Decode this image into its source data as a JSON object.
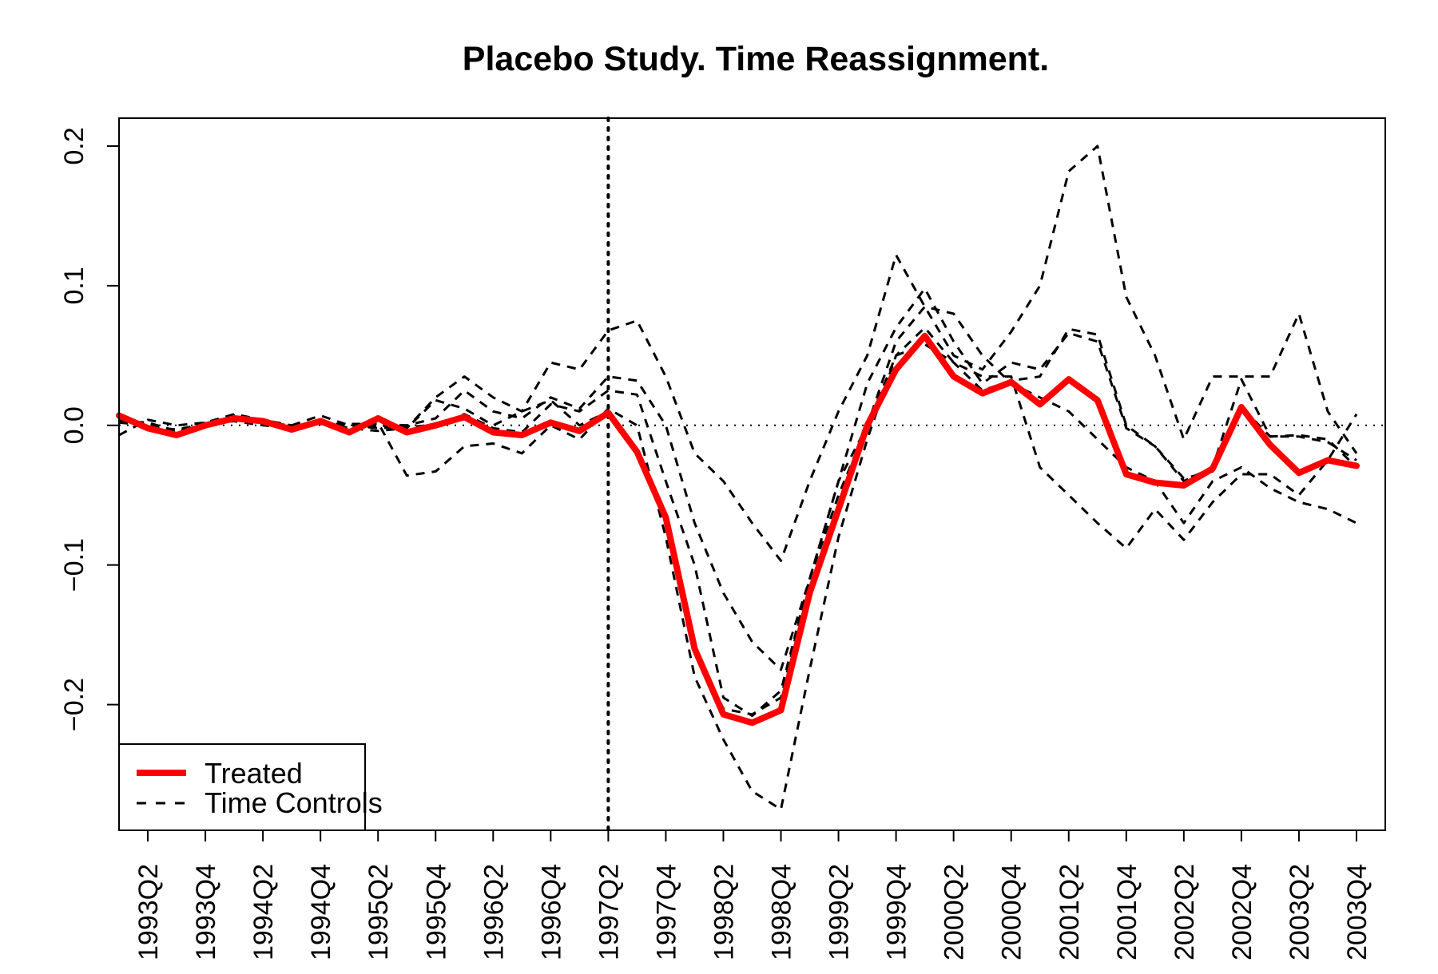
{
  "chart_data": {
    "type": "line",
    "title": "Placebo Study. Time Reassignment.",
    "xlabel": "",
    "ylabel": "",
    "x_tick_labels": [
      "1993Q2",
      "1993Q4",
      "1994Q2",
      "1994Q4",
      "1995Q2",
      "1995Q4",
      "1996Q2",
      "1996Q4",
      "1997Q2",
      "1997Q4",
      "1998Q2",
      "1998Q4",
      "1999Q2",
      "1999Q4",
      "2000Q2",
      "2000Q4",
      "2001Q2",
      "2001Q4",
      "2002Q2",
      "2002Q4",
      "2003Q2",
      "2003Q4"
    ],
    "y_ticks": [
      -0.2,
      -0.1,
      0.0,
      0.1,
      0.2
    ],
    "y_tick_labels": [
      "−0.2",
      "−0.1",
      "0.0",
      "0.1",
      "0.2"
    ],
    "ylim": [
      -0.29,
      0.22
    ],
    "xlim": [
      "1993Q1",
      "2004Q1"
    ],
    "reference_lines": {
      "vertical_at": "1997Q2",
      "horizontal_at": 0.0
    },
    "legend": {
      "placement": "bottom-left",
      "entries": [
        "Treated",
        "Time Controls"
      ]
    },
    "x": [
      "1993Q1",
      "1993Q2",
      "1993Q3",
      "1993Q4",
      "1994Q1",
      "1994Q2",
      "1994Q3",
      "1994Q4",
      "1995Q1",
      "1995Q2",
      "1995Q3",
      "1995Q4",
      "1996Q1",
      "1996Q2",
      "1996Q3",
      "1996Q4",
      "1997Q1",
      "1997Q2",
      "1997Q3",
      "1997Q4",
      "1998Q1",
      "1998Q2",
      "1998Q3",
      "1998Q4",
      "1999Q1",
      "1999Q2",
      "1999Q3",
      "1999Q4",
      "2000Q1",
      "2000Q2",
      "2000Q3",
      "2000Q4",
      "2001Q1",
      "2001Q2",
      "2001Q3",
      "2001Q4",
      "2002Q1",
      "2002Q2",
      "2002Q3",
      "2002Q4",
      "2003Q1",
      "2003Q2",
      "2003Q3",
      "2003Q4"
    ],
    "series": [
      {
        "name": "Treated",
        "color": "#ff0000",
        "style": "solid",
        "values": [
          0.007,
          -0.002,
          -0.007,
          0.0,
          0.005,
          0.003,
          -0.003,
          0.003,
          -0.005,
          0.005,
          -0.005,
          0.0,
          0.006,
          -0.005,
          -0.007,
          0.002,
          -0.004,
          0.009,
          -0.019,
          -0.066,
          -0.16,
          -0.207,
          -0.213,
          -0.204,
          -0.12,
          -0.06,
          0.0,
          0.04,
          0.064,
          0.035,
          0.023,
          0.031,
          0.015,
          0.033,
          0.018,
          -0.035,
          -0.041,
          -0.043,
          -0.031,
          0.013,
          -0.014,
          -0.034,
          -0.025,
          -0.029
        ]
      },
      {
        "style": "dashed",
        "color": "#000000",
        "values": [
          0.003,
          0.002,
          -0.004,
          0.001,
          0.003,
          0.0,
          -0.002,
          0.003,
          -0.002,
          -0.004,
          -0.002,
          0.02,
          0.035,
          0.02,
          0.01,
          0.045,
          0.04,
          0.068,
          0.075,
          0.035,
          -0.02,
          -0.04,
          -0.07,
          -0.097,
          -0.04,
          0.01,
          0.05,
          0.122,
          0.085,
          0.05,
          0.04,
          0.067,
          0.1,
          0.182,
          0.2,
          0.092,
          0.05,
          -0.01,
          0.035,
          0.035,
          0.035,
          0.08,
          0.01,
          -0.02
        ]
      },
      {
        "style": "dashed",
        "color": "#000000",
        "values": [
          -0.007,
          0.004,
          0.0,
          0.002,
          0.008,
          0.004,
          0.0,
          0.001,
          0.001,
          0.001,
          0.0,
          0.005,
          0.025,
          0.01,
          0.005,
          0.02,
          0.012,
          0.035,
          0.032,
          0.0,
          -0.07,
          -0.12,
          -0.155,
          -0.175,
          -0.11,
          -0.04,
          0.03,
          0.07,
          0.098,
          0.06,
          0.03,
          0.045,
          0.04,
          0.066,
          0.06,
          -0.002,
          -0.015,
          -0.04,
          -0.03,
          0.033,
          -0.008,
          -0.007,
          -0.01,
          -0.03
        ]
      },
      {
        "style": "dashed",
        "color": "#000000",
        "values": [
          0.004,
          -0.001,
          -0.003,
          0.001,
          0.006,
          0.002,
          0.0,
          0.007,
          0.0,
          -0.002,
          -0.001,
          0.0,
          0.008,
          -0.002,
          -0.005,
          0.015,
          0.01,
          0.025,
          0.022,
          -0.04,
          -0.1,
          -0.195,
          -0.208,
          -0.19,
          -0.11,
          -0.04,
          0.0,
          0.06,
          0.085,
          0.08,
          0.05,
          0.03,
          0.02,
          0.01,
          -0.01,
          -0.03,
          -0.04,
          -0.07,
          -0.04,
          -0.03,
          -0.045,
          -0.055,
          -0.06,
          -0.07
        ]
      },
      {
        "style": "dashed",
        "color": "#000000",
        "values": [
          0.002,
          0.0,
          -0.005,
          0.002,
          0.005,
          0.004,
          -0.002,
          0.003,
          -0.003,
          0.002,
          -0.036,
          -0.033,
          -0.015,
          -0.013,
          -0.02,
          0.0,
          -0.01,
          0.012,
          0.0,
          -0.08,
          -0.18,
          -0.225,
          -0.262,
          -0.275,
          -0.175,
          -0.08,
          -0.01,
          0.05,
          0.07,
          0.045,
          0.035,
          0.035,
          -0.03,
          -0.05,
          -0.07,
          -0.088,
          -0.06,
          -0.082,
          -0.055,
          -0.035,
          -0.035,
          -0.05,
          -0.025,
          0.008
        ]
      },
      {
        "style": "dashed",
        "color": "#000000",
        "values": [
          0.004,
          0.001,
          -0.006,
          0.002,
          0.007,
          0.004,
          -0.001,
          0.002,
          -0.003,
          0.0,
          -0.002,
          0.018,
          0.012,
          0.0,
          0.01,
          0.018,
          0.0,
          0.01,
          -0.02,
          -0.065,
          -0.16,
          -0.203,
          -0.207,
          -0.195,
          -0.11,
          -0.05,
          0.0,
          0.05,
          0.058,
          0.045,
          0.025,
          0.032,
          0.035,
          0.069,
          0.065,
          0.0,
          -0.015,
          -0.038,
          -0.033,
          0.013,
          -0.008,
          -0.008,
          -0.012,
          -0.025
        ]
      }
    ]
  }
}
